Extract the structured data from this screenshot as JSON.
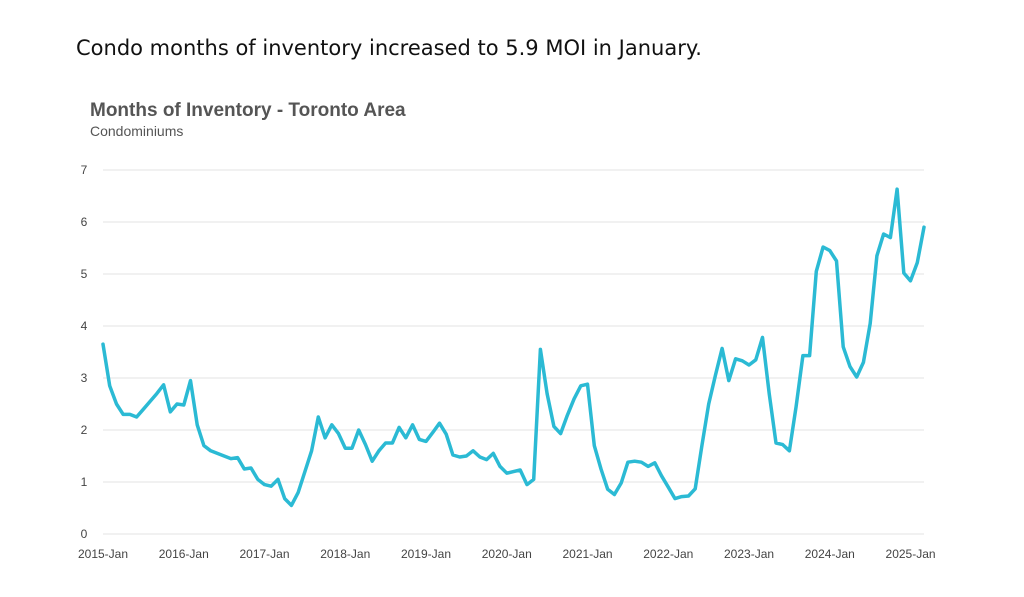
{
  "headline": "Condo months of inventory increased to 5.9 MOI in January.",
  "chart_data": {
    "type": "line",
    "title": "Months of Inventory - Toronto Area",
    "subtitle": "Condominiums",
    "xlabel": "",
    "ylabel": "",
    "ylim": [
      0,
      7
    ],
    "yticks": [
      0,
      1,
      2,
      3,
      4,
      5,
      6,
      7
    ],
    "xticks": [
      "2015-Jan",
      "2016-Jan",
      "2017-Jan",
      "2018-Jan",
      "2019-Jan",
      "2020-Jan",
      "2021-Jan",
      "2022-Jan",
      "2023-Jan",
      "2024-Jan",
      "2025-Jan"
    ],
    "grid": true,
    "legend": "none",
    "color": "#2bbad4",
    "series": [
      {
        "values": [
          3.65,
          2.85,
          2.5,
          2.3,
          2.3,
          2.25,
          2.4,
          2.55,
          2.7,
          2.87,
          2.35,
          2.5,
          2.48,
          2.95,
          2.1,
          1.7,
          1.6,
          1.55,
          1.5,
          1.45,
          1.47,
          1.25,
          1.27,
          1.05,
          0.95,
          0.92,
          1.05,
          0.68,
          0.55,
          0.8,
          1.2,
          1.6,
          2.25,
          1.85,
          2.1,
          1.93,
          1.65,
          1.65,
          2.0,
          1.72,
          1.4,
          1.6,
          1.75,
          1.75,
          2.05,
          1.85,
          2.1,
          1.82,
          1.78,
          1.95,
          2.13,
          1.92,
          1.52,
          1.48,
          1.5,
          1.6,
          1.48,
          1.43,
          1.55,
          1.3,
          1.17,
          1.2,
          1.23,
          0.95,
          1.05,
          3.55,
          2.7,
          2.07,
          1.93,
          2.28,
          2.6,
          2.85,
          2.88,
          1.7,
          1.25,
          0.86,
          0.76,
          0.98,
          1.38,
          1.4,
          1.38,
          1.3,
          1.37,
          1.12,
          0.9,
          0.68,
          0.72,
          0.73,
          0.87,
          1.7,
          2.5,
          3.05,
          3.57,
          2.95,
          3.37,
          3.33,
          3.25,
          3.35,
          3.78,
          2.7,
          1.75,
          1.72,
          1.6,
          2.45,
          3.43,
          3.43,
          5.05,
          5.52,
          5.45,
          5.25,
          3.6,
          3.22,
          3.02,
          3.3,
          4.05,
          5.35,
          5.77,
          5.7,
          6.63,
          5.02,
          4.87,
          5.22,
          5.9
        ]
      }
    ]
  }
}
